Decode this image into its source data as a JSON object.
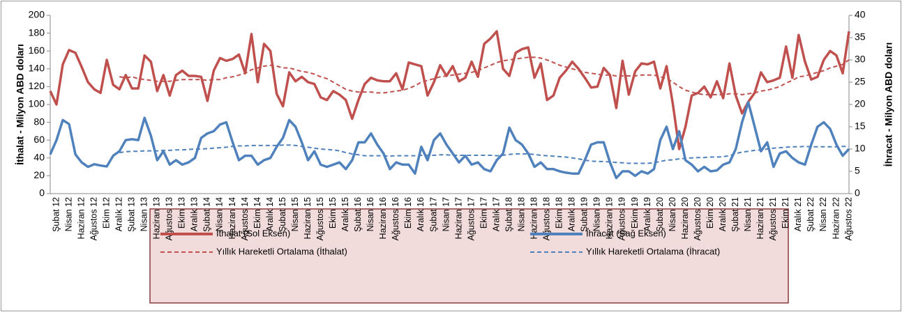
{
  "chart_data": {
    "type": "line",
    "ylabel": "İthalat - Milyon  ABD doları",
    "y2label": "İhracat - Milyon ABD  doları",
    "categories": [
      null,
      "Şubat 12",
      null,
      "Nisan 12",
      null,
      "Haziran 12",
      null,
      "Ağustos 12",
      null,
      "Ekim 12",
      null,
      "Aralık 12",
      null,
      "Şubat 13",
      null,
      "Nisan 13",
      null,
      "Haziran 13",
      null,
      "Ağustos 13",
      null,
      "Ekim 13",
      null,
      "Aralık 13",
      null,
      "Şubat 14",
      null,
      "Nisan 14",
      null,
      "Haziran 14",
      null,
      "Ağustos 14",
      null,
      "Ekim 14",
      null,
      "Aralık 14",
      null,
      "Şubat 15",
      null,
      "Nisan 15",
      null,
      "Haziran 15",
      null,
      "Ağustos 15",
      null,
      "Ekim 15",
      null,
      "Aralık 15",
      null,
      "Şubat 16",
      null,
      "Nisan 16",
      null,
      "Haziran 16",
      null,
      "Ağustos 16",
      null,
      "Ekim 16",
      null,
      "Aralık 16",
      null,
      "Şubat 17",
      null,
      "Nisan 17",
      null,
      "Haziran 17",
      null,
      "Ağustos 17",
      null,
      "Ekim 17",
      null,
      "Aralık 17",
      null,
      "Şubat 18",
      null,
      "Nisan 18",
      null,
      "Haziran 18",
      null,
      "Ağustos 18",
      null,
      "Ekim 18",
      null,
      "Aralık 18",
      null,
      "Şubat 19",
      null,
      "Nisan 19",
      null,
      "Haziran 19",
      null,
      "Ağustos 19",
      null,
      "Ekim 19",
      null,
      "Aralık 19",
      null,
      "Şubat 20",
      null,
      "Nisan 20",
      null,
      "Haziran 20",
      null,
      "Ağustos 20",
      null,
      "Ekim 20",
      null,
      "Aralık 20",
      null,
      "Şubat 21",
      null,
      "Nisan 21",
      null,
      "Haziran 21",
      null,
      "Ağustos 21",
      null,
      "Ekim 21",
      null,
      "Aralık 21",
      null,
      "Şubat 22",
      null,
      "Nisan 22",
      null,
      "Haziran 22",
      null,
      "Ağustos 22"
    ],
    "series": [
      {
        "name": "İthalat (Sol Eksen)",
        "color": "#c0504d",
        "line_style": "solid",
        "axis": "y",
        "values": [
          115,
          100,
          145,
          161,
          158,
          142,
          125,
          117,
          113,
          150,
          122,
          117,
          133,
          118,
          118,
          155,
          148,
          115,
          133,
          110,
          133,
          138,
          132,
          132,
          131,
          104,
          138,
          152,
          149,
          151,
          156,
          135,
          179,
          125,
          168,
          160,
          112,
          98,
          136,
          126,
          131,
          125,
          123,
          108,
          105,
          115,
          111,
          105,
          84,
          105,
          123,
          130,
          127,
          126,
          126,
          135,
          117,
          147,
          145,
          143,
          110,
          125,
          144,
          132,
          143,
          126,
          130,
          148,
          131,
          168,
          174,
          182,
          140,
          132,
          158,
          162,
          164,
          130,
          146,
          105,
          110,
          130,
          138,
          148,
          140,
          130,
          119,
          120,
          141,
          133,
          96,
          149,
          111,
          137,
          146,
          145,
          148,
          118,
          143,
          100,
          50,
          75,
          110,
          113,
          120,
          108,
          126,
          107,
          146,
          110,
          90,
          103,
          113,
          136,
          125,
          127,
          130,
          165,
          130,
          178,
          148,
          128,
          131,
          150,
          160,
          155,
          135,
          182
        ]
      },
      {
        "name": "İhracat (Sağ Eksen)",
        "color": "#4f81bd",
        "line_style": "solid",
        "axis": "y2",
        "values": [
          8.8,
          12,
          16.5,
          15.6,
          8.8,
          7,
          6,
          6.6,
          6.3,
          6.1,
          8.5,
          9.5,
          12,
          12.2,
          12,
          17,
          13,
          7.5,
          9.5,
          6.5,
          7.5,
          6.5,
          7,
          8,
          12.5,
          13.5,
          14,
          15.5,
          16,
          11.5,
          7.5,
          8.5,
          8.5,
          6.5,
          7.5,
          8,
          10.5,
          12.5,
          16.5,
          15,
          11.5,
          7.5,
          9.5,
          6.5,
          6,
          6.5,
          7,
          5.5,
          7.5,
          11.5,
          11.5,
          13.5,
          11,
          9,
          5.5,
          7,
          6.5,
          6.5,
          4.5,
          10.5,
          7.5,
          12,
          13.5,
          11,
          9,
          7,
          8.5,
          6.5,
          7,
          5.5,
          5,
          7.5,
          9,
          14.8,
          12,
          11,
          9,
          6,
          7,
          5.5,
          5.5,
          5,
          4.7,
          4.5,
          4.5,
          7.5,
          11,
          11.5,
          11.5,
          7,
          3.5,
          5,
          5,
          4,
          5,
          4.5,
          5.5,
          12,
          15,
          10,
          14,
          7.5,
          6.5,
          5,
          6,
          5,
          5.2,
          6.5,
          7,
          10,
          16,
          20.5,
          15,
          9.5,
          11.5,
          6,
          9,
          9.5,
          8,
          7,
          6.5,
          11,
          15,
          16,
          14.5,
          11,
          8.5,
          10
        ]
      },
      {
        "name": "Yıllık Hareketli Ortalama (İthalat)",
        "color": "#c0504d",
        "line_style": "dashed",
        "axis": "y",
        "values": [
          null,
          null,
          null,
          null,
          null,
          null,
          null,
          null,
          null,
          null,
          null,
          131,
          130,
          131,
          129,
          128,
          127,
          126,
          126,
          126,
          127,
          128,
          128,
          128,
          128,
          127,
          128,
          128,
          130,
          131,
          133,
          135,
          139,
          141,
          143,
          144,
          143,
          141,
          141,
          139,
          137,
          136,
          134,
          131,
          129,
          125,
          121,
          117,
          115,
          114,
          114,
          114,
          113,
          113,
          114,
          115,
          116,
          118,
          121,
          125,
          127,
          129,
          131,
          132,
          133,
          134,
          135,
          136,
          138,
          141,
          144,
          147,
          149,
          150,
          151,
          152,
          153,
          153,
          152,
          150,
          147,
          144,
          142,
          140,
          138,
          136,
          135,
          134,
          133,
          133,
          132,
          132,
          132,
          132,
          133,
          133,
          133,
          131,
          129,
          125,
          120,
          116,
          114,
          112,
          111,
          111,
          111,
          111,
          112,
          112,
          111,
          112,
          113,
          115,
          116,
          118,
          120,
          124,
          127,
          131,
          132,
          134,
          136,
          138,
          141,
          143,
          145,
          150
        ]
      },
      {
        "name": "Yıllık Hareketli Ortalama (İhracat)",
        "color": "#4f81bd",
        "line_style": "dashed",
        "axis": "y2",
        "values": [
          null,
          null,
          null,
          null,
          null,
          null,
          null,
          null,
          null,
          null,
          null,
          9.2,
          9.4,
          9.5,
          9.5,
          9.6,
          9.6,
          9.6,
          9.7,
          9.7,
          9.8,
          9.8,
          9.9,
          10,
          10,
          10.1,
          10.2,
          10.3,
          10.4,
          10.6,
          10.7,
          10.7,
          10.8,
          10.8,
          10.8,
          10.8,
          10.8,
          10.9,
          10.9,
          10.8,
          10.6,
          10.4,
          10.2,
          10,
          9.9,
          9.8,
          9.6,
          9.2,
          8.9,
          8.7,
          8.5,
          8.5,
          8.5,
          8.5,
          8.4,
          8.5,
          8.5,
          8.5,
          8.5,
          8.6,
          8.6,
          8.6,
          8.7,
          8.7,
          8.6,
          8.6,
          8.6,
          8.6,
          8.6,
          8.6,
          8.6,
          8.5,
          8.6,
          8.8,
          8.9,
          8.9,
          8.9,
          8.8,
          8.6,
          8.5,
          8.4,
          8.3,
          8.2,
          8,
          7.8,
          7.5,
          7.3,
          7.2,
          7.2,
          7.1,
          7,
          6.9,
          6.8,
          6.8,
          6.8,
          6.8,
          6.9,
          7.2,
          7.5,
          7.6,
          7.8,
          7.9,
          8,
          8.1,
          8.1,
          8.2,
          8.2,
          8.3,
          8.5,
          9,
          9.3,
          9.5,
          9.7,
          9.8,
          10,
          10.2,
          10.3,
          10.4,
          10.5,
          10.5,
          10.6,
          10.5,
          10.5,
          10.5,
          10.5,
          10.5,
          10.6,
          10.6
        ]
      }
    ],
    "ylim": [
      0,
      200
    ],
    "yticks": [
      0,
      20,
      40,
      60,
      80,
      100,
      120,
      140,
      160,
      180,
      200
    ],
    "y2lim": [
      0,
      40
    ],
    "y2ticks": [
      0,
      5,
      10,
      15,
      20,
      25,
      30,
      35,
      40
    ],
    "grid": false,
    "legend": "bottom"
  }
}
